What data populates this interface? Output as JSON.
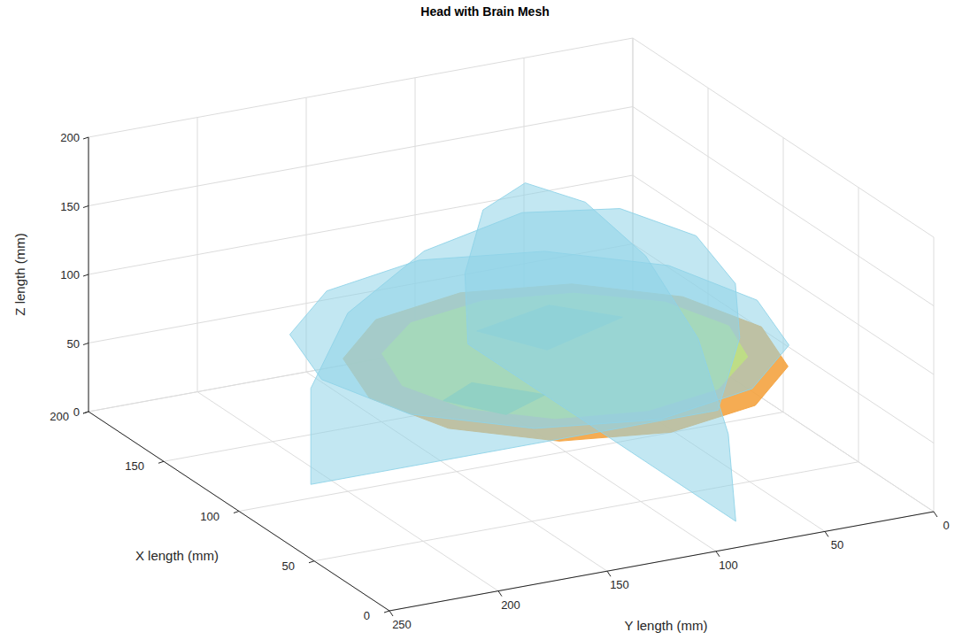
{
  "chart_data": {
    "type": "scatter3d",
    "title": "Head with Brain Mesh",
    "xlabel": "X length (mm)",
    "ylabel": "Y length (mm)",
    "zlabel": "Z length (mm)",
    "xlim": [
      0,
      200
    ],
    "ylim": [
      0,
      250
    ],
    "zlim": [
      0,
      200
    ],
    "xticks": [
      0,
      50,
      100,
      150,
      200
    ],
    "yticks": [
      0,
      50,
      100,
      150,
      200,
      250
    ],
    "zticks": [
      0,
      50,
      100,
      150,
      200
    ],
    "grid": true,
    "series": [
      {
        "color": "#f4a340",
        "surfaces": [
          [
            [
              170,
              100,
              65
            ],
            [
              161,
              145,
              65
            ],
            [
              135,
              178,
              65
            ],
            [
              100,
              190,
              65
            ],
            [
              65,
              178,
              65
            ],
            [
              39,
              145,
              65
            ],
            [
              30,
              100,
              65
            ],
            [
              39,
              55,
              65
            ],
            [
              65,
              22,
              65
            ],
            [
              100,
              10,
              65
            ],
            [
              135,
              22,
              65
            ],
            [
              161,
              55,
              65
            ]
          ]
        ]
      },
      {
        "color": "#f5ee0a",
        "surfaces": [
          [
            [
              155,
              100,
              70
            ],
            [
              148,
              138,
              70
            ],
            [
              128,
              165,
              70
            ],
            [
              100,
              175,
              70
            ],
            [
              73,
              165,
              70
            ],
            [
              52,
              138,
              70
            ],
            [
              45,
              100,
              70
            ],
            [
              52,
              63,
              70
            ],
            [
              73,
              35,
              70
            ],
            [
              100,
              25,
              70
            ],
            [
              128,
              35,
              70
            ],
            [
              148,
              63,
              70
            ]
          ]
        ]
      },
      {
        "color": "#8cc63f",
        "surfaces": [
          [
            [
              120,
              60,
              72
            ],
            [
              140,
              80,
              72
            ],
            [
              130,
              120,
              72
            ],
            [
              105,
              105,
              72
            ]
          ],
          [
            [
              70,
              130,
              72
            ],
            [
              90,
              150,
              72
            ],
            [
              80,
              170,
              72
            ],
            [
              60,
              155,
              72
            ]
          ]
        ]
      },
      {
        "color": "#8fd3e8",
        "surfaces": [
          [
            [
              180,
              112,
              85
            ],
            [
              169,
              162,
              85
            ],
            [
              140,
              199,
              85
            ],
            [
              100,
              212,
              85
            ],
            [
              60,
              199,
              85
            ],
            [
              31,
              162,
              85
            ],
            [
              20,
              112,
              85
            ],
            [
              31,
              62,
              85
            ],
            [
              60,
              25,
              85
            ],
            [
              100,
              12,
              85
            ],
            [
              140,
              25,
              85
            ],
            [
              169,
              62,
              85
            ]
          ],
          [
            [
              100,
              217,
              10
            ],
            [
              100,
              217,
              80
            ],
            [
              100,
              200,
              130
            ],
            [
              100,
              165,
              165
            ],
            [
              100,
              120,
              180
            ],
            [
              100,
              75,
              170
            ],
            [
              100,
              40,
              140
            ],
            [
              100,
              22,
              100
            ],
            [
              100,
              20,
              60
            ],
            [
              100,
              30,
              10
            ]
          ],
          [
            [
              10,
              84,
              10
            ],
            [
              15,
              84,
              70
            ],
            [
              35,
              84,
              125
            ],
            [
              70,
              84,
              160
            ],
            [
              110,
              84,
              170
            ],
            [
              150,
              84,
              155
            ],
            [
              178,
              84,
              115
            ],
            [
              190,
              84,
              60
            ],
            [
              188,
              84,
              10
            ]
          ]
        ]
      }
    ]
  }
}
